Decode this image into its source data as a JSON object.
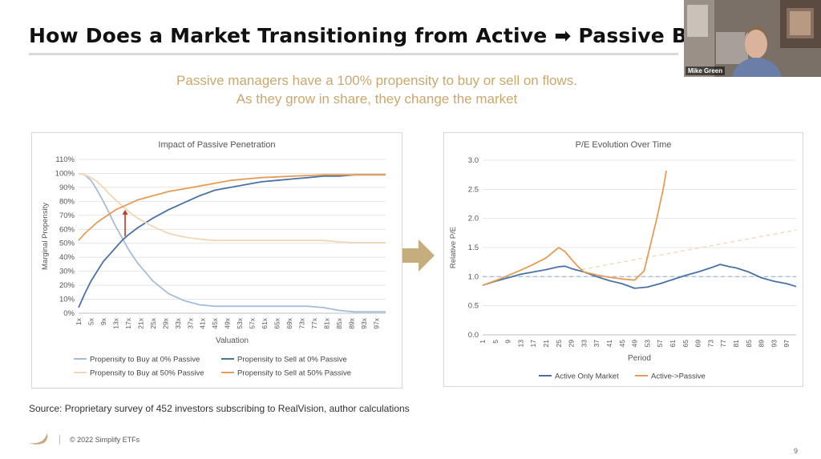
{
  "slide": {
    "title": "How Does a Market Transitioning from Active ➡ Passive Be",
    "subtitle_lines": [
      "Passive managers have a 100% propensity to buy or sell on flows.",
      "As they grow in share, they change the market"
    ],
    "source": "Source: Proprietary survey of 452 investors subscribing to RealVision, author calculations",
    "copyright": "© 2022 Simplify ETFs",
    "page_number": "9",
    "arrow_icon": "right-arrow-icon",
    "logo_icon": "simplify-logo-icon"
  },
  "video": {
    "participant_name": "Mike Green"
  },
  "colors": {
    "title": "#111111",
    "subtitle": "#c9a86e",
    "accent_gold": "#c6ad7e",
    "buy0": "#a7bcd9",
    "sell0": "#4a72a6",
    "buy50": "#f2d6b5",
    "sell50": "#e59c55",
    "active_only": "#4a72a6",
    "active_passive": "#e59c55"
  },
  "chart_data": [
    {
      "type": "line",
      "title": "Impact of Passive Penetration",
      "xlabel": "Valuation",
      "ylabel": "Marginal Propensity",
      "x_ticks": [
        "1x",
        "5x",
        "9x",
        "13x",
        "17x",
        "21x",
        "25x",
        "29x",
        "33x",
        "37x",
        "41x",
        "45x",
        "49x",
        "53x",
        "57x",
        "61x",
        "65x",
        "69x",
        "73x",
        "77x",
        "81x",
        "85x",
        "89x",
        "93x",
        "97x"
      ],
      "y_ticks": [
        "0%",
        "10%",
        "20%",
        "30%",
        "40%",
        "50%",
        "60%",
        "70%",
        "80%",
        "90%",
        "100%",
        "110%"
      ],
      "ylim": [
        0,
        1.1
      ],
      "xlim": [
        1,
        100
      ],
      "grid": true,
      "legend_position": "bottom",
      "series": [
        {
          "name": "Propensity to Buy at 0% Passive",
          "color": "#a7bcd9",
          "x": [
            1,
            3,
            5,
            7,
            9,
            11,
            13,
            15,
            17,
            20,
            25,
            30,
            35,
            40,
            45,
            50,
            55,
            60,
            65,
            70,
            75,
            80,
            85,
            90,
            95,
            100
          ],
          "y": [
            1.0,
            0.99,
            0.95,
            0.88,
            0.8,
            0.71,
            0.62,
            0.54,
            0.46,
            0.36,
            0.23,
            0.14,
            0.09,
            0.06,
            0.05,
            0.05,
            0.05,
            0.05,
            0.05,
            0.05,
            0.05,
            0.04,
            0.02,
            0.01,
            0.01,
            0.01
          ]
        },
        {
          "name": "Propensity to Sell at 0% Passive",
          "color": "#4a72a6",
          "x": [
            1,
            3,
            5,
            7,
            9,
            11,
            13,
            15,
            17,
            20,
            25,
            30,
            35,
            40,
            45,
            50,
            55,
            60,
            65,
            70,
            75,
            80,
            85,
            90,
            95,
            100
          ],
          "y": [
            0.04,
            0.14,
            0.23,
            0.3,
            0.37,
            0.42,
            0.47,
            0.52,
            0.56,
            0.61,
            0.68,
            0.74,
            0.79,
            0.84,
            0.88,
            0.9,
            0.92,
            0.94,
            0.95,
            0.96,
            0.97,
            0.98,
            0.98,
            0.99,
            0.99,
            0.99
          ]
        },
        {
          "name": "Propensity to Buy at 50% Passive",
          "color": "#f2d6b5",
          "x": [
            1,
            3,
            5,
            7,
            9,
            11,
            13,
            15,
            17,
            20,
            25,
            30,
            35,
            40,
            45,
            50,
            55,
            60,
            65,
            70,
            75,
            80,
            85,
            90,
            95,
            100
          ],
          "y": [
            1.0,
            0.99,
            0.97,
            0.94,
            0.9,
            0.85,
            0.81,
            0.77,
            0.73,
            0.68,
            0.62,
            0.57,
            0.545,
            0.53,
            0.52,
            0.52,
            0.52,
            0.52,
            0.52,
            0.52,
            0.52,
            0.52,
            0.51,
            0.505,
            0.505,
            0.505
          ]
        },
        {
          "name": "Propensity to Sell at 50% Passive",
          "color": "#e59c55",
          "x": [
            1,
            3,
            5,
            7,
            9,
            11,
            13,
            15,
            17,
            20,
            25,
            30,
            35,
            40,
            45,
            50,
            55,
            60,
            65,
            70,
            75,
            80,
            85,
            90,
            95,
            100
          ],
          "y": [
            0.52,
            0.57,
            0.61,
            0.65,
            0.68,
            0.71,
            0.74,
            0.76,
            0.78,
            0.81,
            0.84,
            0.87,
            0.89,
            0.91,
            0.93,
            0.95,
            0.96,
            0.97,
            0.975,
            0.98,
            0.985,
            0.99,
            0.99,
            0.99,
            0.99,
            0.99
          ]
        }
      ],
      "annotation": {
        "type": "arrow",
        "x": 16,
        "from_y": 0.55,
        "to_y": 0.74,
        "color": "#c0392b"
      }
    },
    {
      "type": "line",
      "title": "P/E Evolution Over Time",
      "xlabel": "Period",
      "ylabel": "Relative P/E",
      "x_ticks": [
        "1",
        "5",
        "9",
        "13",
        "17",
        "21",
        "25",
        "29",
        "33",
        "37",
        "41",
        "45",
        "49",
        "53",
        "57",
        "61",
        "65",
        "69",
        "73",
        "77",
        "81",
        "85",
        "89",
        "93",
        "97"
      ],
      "y_ticks": [
        "0.0",
        "0.5",
        "1.0",
        "1.5",
        "2.0",
        "2.5",
        "3.0"
      ],
      "ylim": [
        0,
        3.0
      ],
      "xlim": [
        1,
        100
      ],
      "grid": true,
      "legend_position": "bottom",
      "reference_lines": [
        {
          "y": 1.0,
          "style": "dashed",
          "color": "#a7bcd9"
        },
        {
          "from": [
            30,
            1.1
          ],
          "to": [
            100,
            1.8
          ],
          "style": "dashed",
          "color": "#f2d6b5"
        }
      ],
      "series": [
        {
          "name": "Active Only Market",
          "color": "#4a72a6",
          "x": [
            1,
            5,
            9,
            13,
            17,
            21,
            25,
            27,
            29,
            33,
            37,
            41,
            45,
            49,
            53,
            57,
            61,
            65,
            69,
            73,
            76,
            79,
            81,
            85,
            89,
            93,
            97,
            100
          ],
          "y": [
            0.85,
            0.92,
            0.98,
            1.04,
            1.08,
            1.12,
            1.17,
            1.18,
            1.14,
            1.08,
            1.0,
            0.93,
            0.88,
            0.8,
            0.82,
            0.88,
            0.95,
            1.02,
            1.08,
            1.15,
            1.21,
            1.17,
            1.15,
            1.08,
            0.98,
            0.92,
            0.88,
            0.83
          ]
        },
        {
          "name": "Active->Passive",
          "color": "#e59c55",
          "x": [
            1,
            5,
            9,
            13,
            17,
            21,
            25,
            27,
            29,
            31,
            33,
            37,
            41,
            45,
            49,
            52,
            54,
            56,
            58,
            59
          ],
          "y": [
            0.85,
            0.93,
            1.02,
            1.11,
            1.21,
            1.32,
            1.5,
            1.43,
            1.3,
            1.18,
            1.08,
            1.03,
            0.99,
            0.96,
            0.94,
            1.1,
            1.55,
            2.0,
            2.5,
            2.82
          ]
        }
      ]
    }
  ]
}
